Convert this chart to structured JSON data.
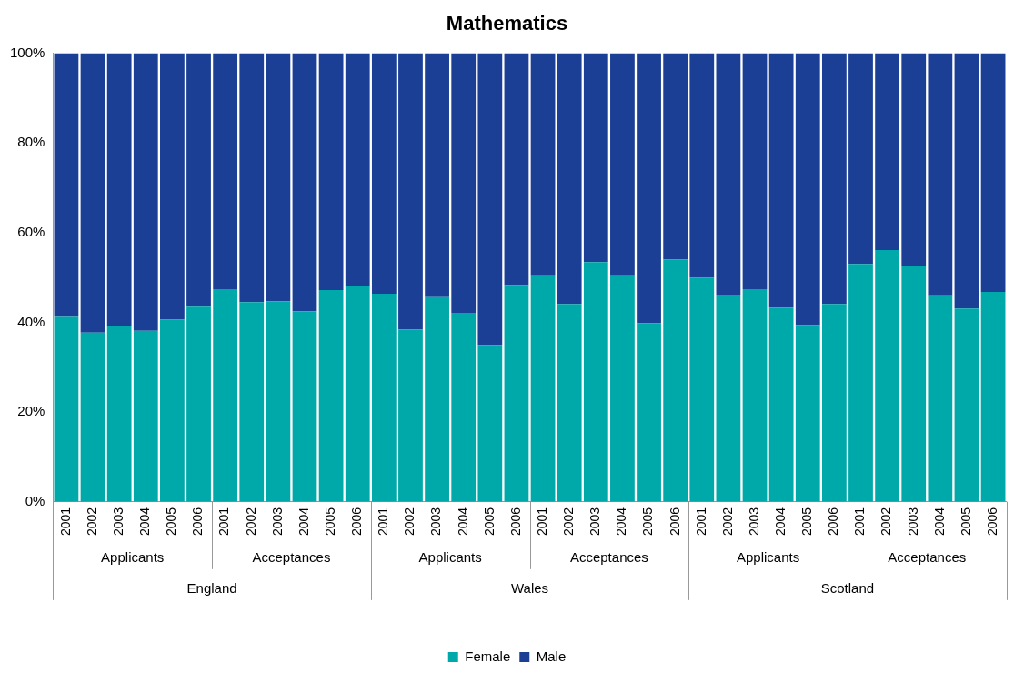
{
  "chart_data": {
    "type": "bar",
    "title": "Mathematics",
    "stacked": true,
    "categories": [
      "2001",
      "2002",
      "2003",
      "2004",
      "2005",
      "2006",
      "2001",
      "2002",
      "2003",
      "2004",
      "2005",
      "2006",
      "2001",
      "2002",
      "2003",
      "2004",
      "2005",
      "2006",
      "2001",
      "2002",
      "2003",
      "2004",
      "2005",
      "2006",
      "2001",
      "2002",
      "2003",
      "2004",
      "2005",
      "2006",
      "2001",
      "2002",
      "2003",
      "2004",
      "2005",
      "2006"
    ],
    "series": [
      {
        "name": "Female",
        "color": "#00a9a9",
        "values": [
          41.2,
          37.7,
          39.2,
          38.1,
          40.6,
          43.5,
          47.4,
          44.5,
          44.7,
          42.5,
          47.2,
          48.0,
          46.4,
          38.4,
          45.6,
          42.1,
          35.0,
          48.3,
          50.5,
          44.1,
          53.4,
          50.5,
          39.8,
          54.0,
          49.9,
          46.2,
          47.4,
          43.3,
          39.4,
          44.1,
          53.0,
          56.1,
          52.6,
          46.0,
          43.1,
          46.8
        ]
      },
      {
        "name": "Male",
        "color": "#1c3f96",
        "values": [
          58.8,
          62.3,
          60.8,
          61.9,
          59.4,
          56.5,
          52.6,
          55.5,
          55.3,
          57.5,
          52.8,
          52.0,
          53.6,
          61.6,
          54.4,
          57.9,
          65.0,
          51.7,
          49.5,
          55.9,
          46.6,
          49.5,
          60.2,
          46.0,
          50.1,
          53.8,
          52.6,
          56.7,
          60.6,
          55.9,
          47.0,
          43.9,
          47.4,
          54.0,
          56.9,
          53.2
        ]
      }
    ],
    "ylim": [
      0,
      100
    ],
    "yticks": [
      {
        "value": 0,
        "label": "0%"
      },
      {
        "value": 20,
        "label": "20%"
      },
      {
        "value": 40,
        "label": "40%"
      },
      {
        "value": 60,
        "label": "60%"
      },
      {
        "value": 80,
        "label": "80%"
      },
      {
        "value": 100,
        "label": "100%"
      }
    ],
    "annotations": [
      "Applicants",
      "Acceptances",
      "Applicants",
      "Acceptances",
      "Applicants",
      "Acceptances",
      "England",
      "Wales",
      "Scotland"
    ],
    "legend": "bottom"
  }
}
